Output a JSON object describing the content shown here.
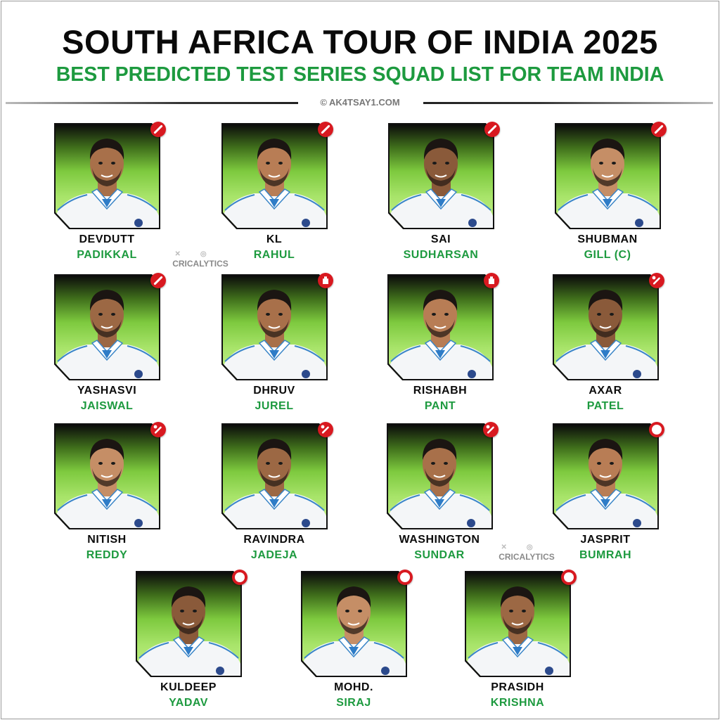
{
  "header": {
    "title": "SOUTH AFRICA TOUR OF INDIA 2025",
    "subtitle": "BEST PREDICTED TEST SERIES SQUAD LIST FOR TEAM INDIA",
    "credit": "© AK4TSAY1.COM"
  },
  "watermark": {
    "text": "CRICALYTICS",
    "icons": [
      "x-icon",
      "instagram-icon"
    ]
  },
  "colors": {
    "accent_green": "#1d9a3f",
    "role_red": "#d81920",
    "card_green": "#7dc93e"
  },
  "players": [
    {
      "first": "DEVDUTT",
      "last": "PADIKKAL",
      "role": "batter"
    },
    {
      "first": "KL",
      "last": "RAHUL",
      "role": "batter"
    },
    {
      "first": "SAI",
      "last": "SUDHARSAN",
      "role": "batter"
    },
    {
      "first": "SHUBMAN",
      "last": "GILL (C)",
      "role": "batter"
    },
    {
      "first": "YASHASVI",
      "last": "JAISWAL",
      "role": "batter"
    },
    {
      "first": "DHRUV",
      "last": "JUREL",
      "role": "wicketkeeper"
    },
    {
      "first": "RISHABH",
      "last": "PANT",
      "role": "wicketkeeper"
    },
    {
      "first": "AXAR",
      "last": "PATEL",
      "role": "allrounder"
    },
    {
      "first": "NITISH",
      "last": "REDDY",
      "role": "allrounder"
    },
    {
      "first": "RAVINDRA",
      "last": "JADEJA",
      "role": "allrounder"
    },
    {
      "first": "WASHINGTON",
      "last": "SUNDAR",
      "role": "allrounder"
    },
    {
      "first": "JASPRIT",
      "last": "BUMRAH",
      "role": "bowler"
    },
    {
      "first": "KULDEEP",
      "last": "YADAV",
      "role": "bowler"
    },
    {
      "first": "MOHD.",
      "last": "SIRAJ",
      "role": "bowler"
    },
    {
      "first": "PRASIDH",
      "last": "KRISHNA",
      "role": "bowler"
    }
  ]
}
